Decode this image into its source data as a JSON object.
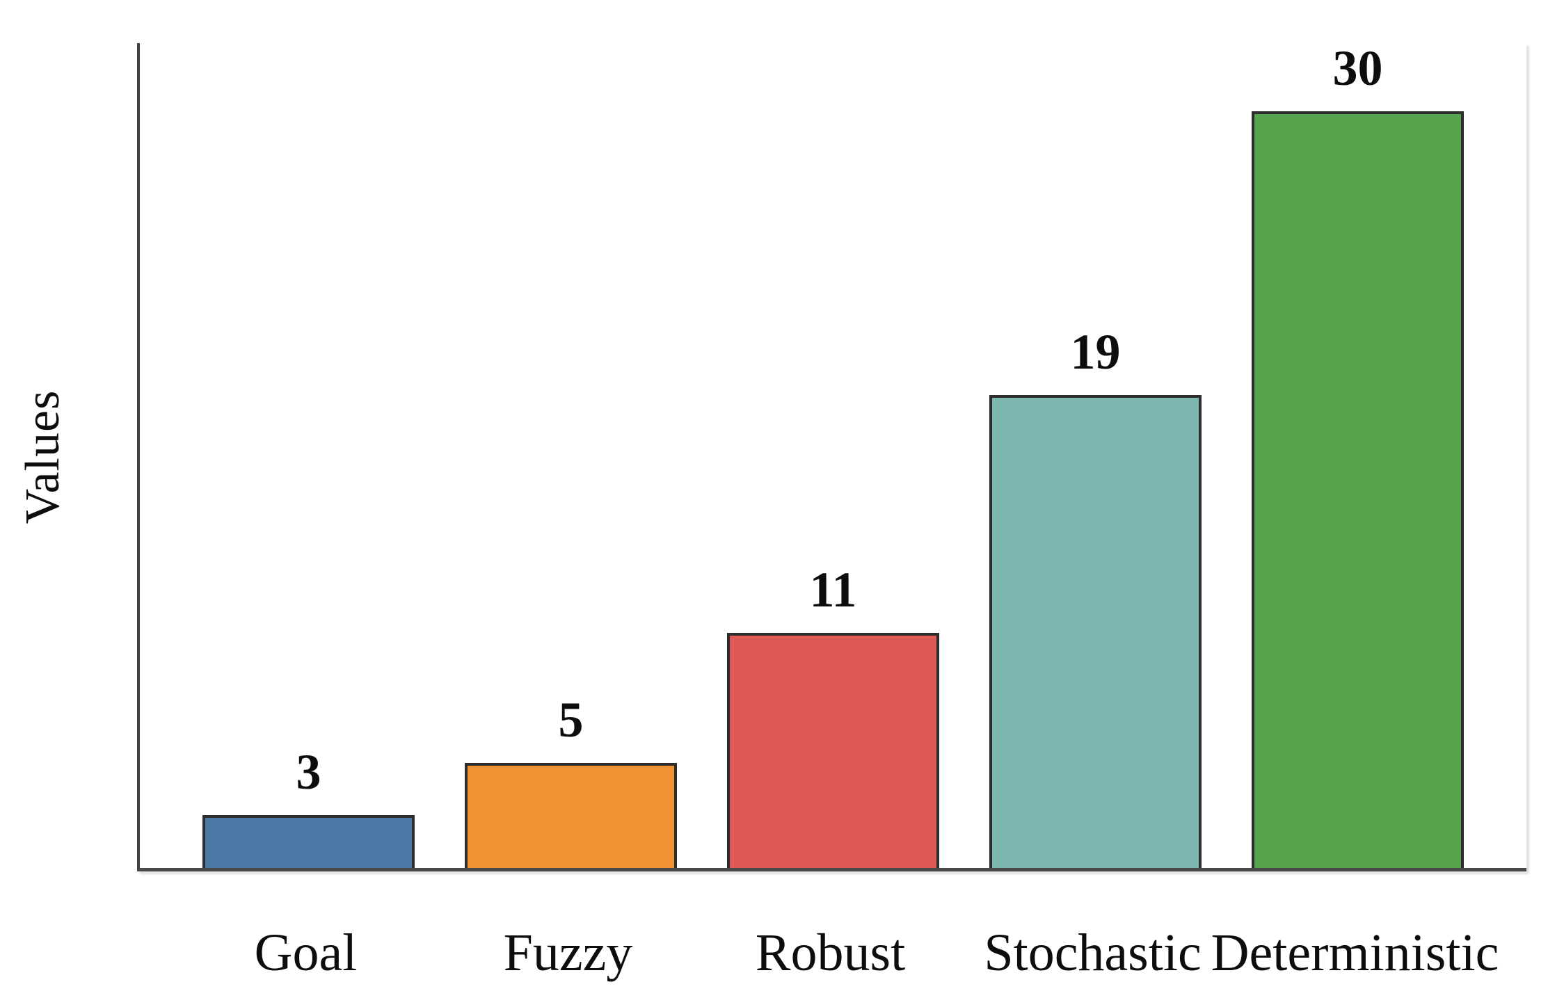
{
  "chart_data": {
    "type": "bar",
    "title": "",
    "xlabel": "",
    "ylabel": "Values",
    "categories": [
      "Goal",
      "Fuzzy",
      "Robust",
      "Stochastic",
      "Deterministic"
    ],
    "values": [
      3,
      5,
      11,
      19,
      30
    ],
    "bar_labels": [
      "3",
      "5",
      "11",
      "19",
      "30"
    ],
    "bar_colors": [
      "#4d79a7",
      "#f0922f",
      "#dd5a57",
      "#7cb7b0",
      "#57a34e"
    ],
    "bar_edge_color": "#2d2d2d",
    "axis_color": "#4a4a4a",
    "text_color": "#0d0d0d",
    "background_color": "#ffffff",
    "ylim": [
      0,
      31.6
    ],
    "grid": false,
    "legend": null,
    "layout_hints": {
      "bar_height_pct": [
        6.4,
        12.7,
        28.5,
        57.3,
        95.1
      ],
      "value_labels_position": "above-bars",
      "y_ticks_visible": false
    }
  }
}
